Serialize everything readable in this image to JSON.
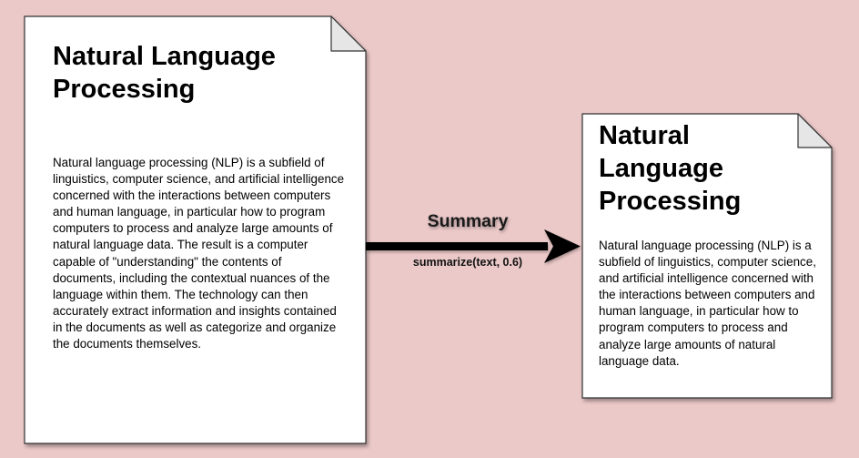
{
  "source_document": {
    "title": "Natural Language Processing",
    "body": "Natural language processing (NLP) is a subfield of linguistics, computer science, and artificial intelligence concerned with the interactions between computers and human language, in particular how to program computers to process and analyze large amounts of natural language data. The result is a computer capable of \"understanding\" the contents of documents, including the contextual nuances of the language within them. The technology can then accurately extract information and insights contained in the documents as well as categorize and organize the documents themselves."
  },
  "arrow": {
    "label": "Summary",
    "caption": "summarize(text, 0.6)"
  },
  "summary_document": {
    "title": "Natural Language Processing",
    "body": "Natural language processing (NLP) is a subfield of linguistics, computer science, and artificial intelligence concerned with the interactions between computers and human language, in particular how to program computers to process and analyze large amounts of natural language data."
  },
  "colors": {
    "background": "#ecc9c9",
    "page": "#ffffff",
    "border": "#333333",
    "fold": "#e6e6e6",
    "arrow": "#000000"
  }
}
